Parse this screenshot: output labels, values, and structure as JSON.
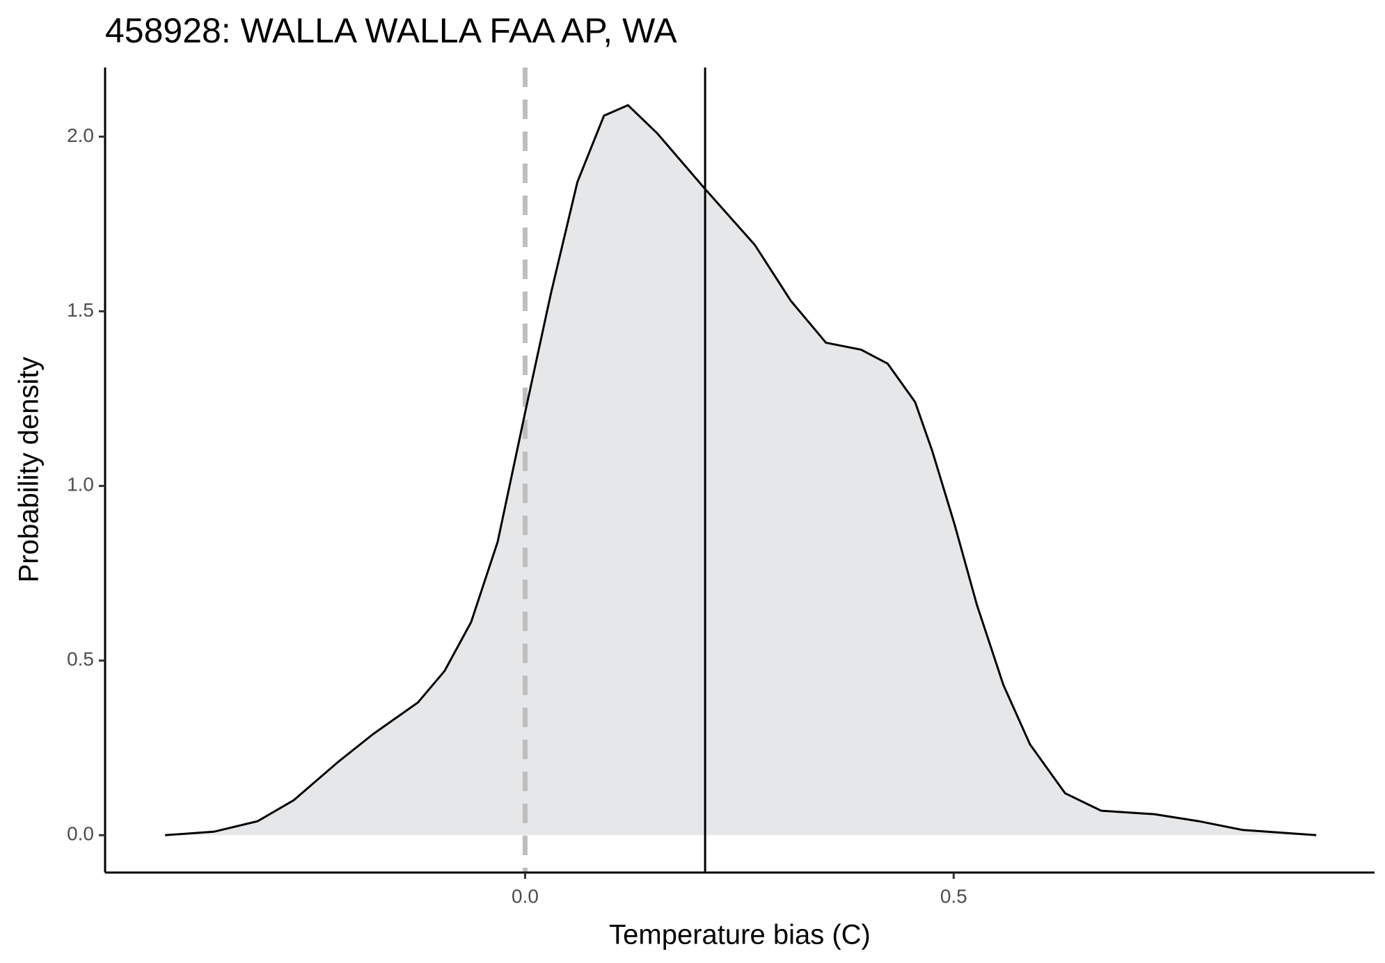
{
  "chart_data": {
    "type": "density",
    "title": "458928: WALLA WALLA FAA AP, WA",
    "x_label": "Temperature bias (C)",
    "y_label": "Probability density",
    "x": [
      -0.42,
      -0.363,
      -0.312,
      -0.27,
      -0.218,
      -0.177,
      -0.125,
      -0.094,
      -0.063,
      -0.032,
      0.0,
      0.03,
      0.061,
      0.092,
      0.12,
      0.154,
      0.21,
      0.268,
      0.31,
      0.351,
      0.392,
      0.423,
      0.455,
      0.475,
      0.501,
      0.527,
      0.558,
      0.589,
      0.63,
      0.672,
      0.734,
      0.786,
      0.837,
      0.923
    ],
    "values": [
      0,
      0.01,
      0.04,
      0.1,
      0.21,
      0.29,
      0.38,
      0.47,
      0.61,
      0.84,
      1.21,
      1.55,
      1.87,
      2.06,
      2.09,
      2.01,
      1.85,
      1.69,
      1.53,
      1.41,
      1.39,
      1.35,
      1.24,
      1.1,
      0.89,
      0.66,
      0.43,
      0.26,
      0.12,
      0.07,
      0.06,
      0.04,
      0.015,
      0
    ],
    "color": "#000000",
    "fill": "#e6e7e8",
    "vlines": [
      {
        "x": 0,
        "color": "#bebebe",
        "dashed": true
      },
      {
        "x": 0.21,
        "color": "#000000",
        "dashed": false
      }
    ],
    "xlim": [
      -0.49,
      0.991
    ],
    "ylim": [
      -0.107,
      2.198
    ],
    "xticks": [
      {
        "value": 0,
        "label": "0.0"
      },
      0.5
    ],
    "yticks": [
      {
        "value": 0,
        "label": "0.0"
      },
      0.5,
      {
        "value": 1,
        "label": "1.0"
      },
      1.5,
      {
        "value": 2,
        "label": "2.0"
      }
    ]
  }
}
